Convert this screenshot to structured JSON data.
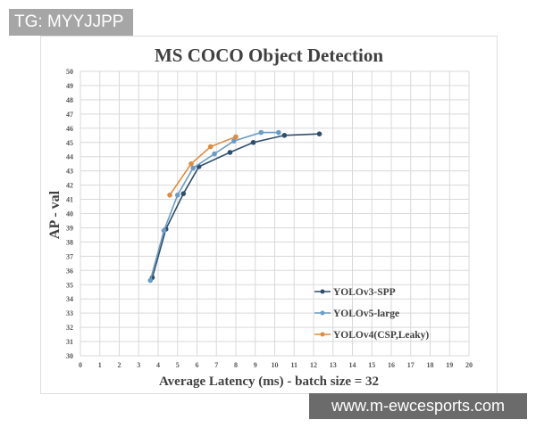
{
  "watermarks": {
    "top_left": "TG: MYYJJPP",
    "bottom_right": "www.m-ewcesports.com"
  },
  "chart_data": {
    "type": "line",
    "title": "MS COCO Object Detection",
    "xlabel": "Average Latency (ms) - batch size = 32",
    "ylabel": "AP - val",
    "xlim": [
      0,
      20
    ],
    "ylim": [
      30,
      50
    ],
    "xticks": [
      0,
      1,
      2,
      3,
      4,
      5,
      6,
      7,
      8,
      9,
      10,
      11,
      12,
      13,
      14,
      15,
      16,
      17,
      18,
      19,
      20
    ],
    "yticks": [
      30,
      31,
      32,
      33,
      34,
      35,
      36,
      37,
      38,
      39,
      40,
      41,
      42,
      43,
      44,
      45,
      46,
      47,
      48,
      49,
      50
    ],
    "grid": true,
    "legend": "right",
    "series": [
      {
        "name": "YOLOv3-SPP",
        "color": "#2e4e6b",
        "x": [
          3.7,
          4.4,
          5.3,
          6.1,
          7.7,
          8.9,
          10.5,
          12.3
        ],
        "y": [
          35.5,
          38.9,
          41.4,
          43.3,
          44.3,
          45.0,
          45.5,
          45.6
        ]
      },
      {
        "name": "YOLOv5-large",
        "color": "#6a9cc6",
        "x": [
          3.6,
          4.3,
          5.0,
          5.8,
          6.9,
          7.9,
          9.3,
          10.2
        ],
        "y": [
          35.3,
          38.8,
          41.3,
          43.2,
          44.2,
          45.1,
          45.7,
          45.7
        ]
      },
      {
        "name": "YOLOv4(CSP,Leaky)",
        "color": "#e08a3c",
        "x": [
          4.6,
          5.7,
          6.7,
          8.0
        ],
        "y": [
          41.3,
          43.5,
          44.7,
          45.4
        ]
      }
    ]
  }
}
